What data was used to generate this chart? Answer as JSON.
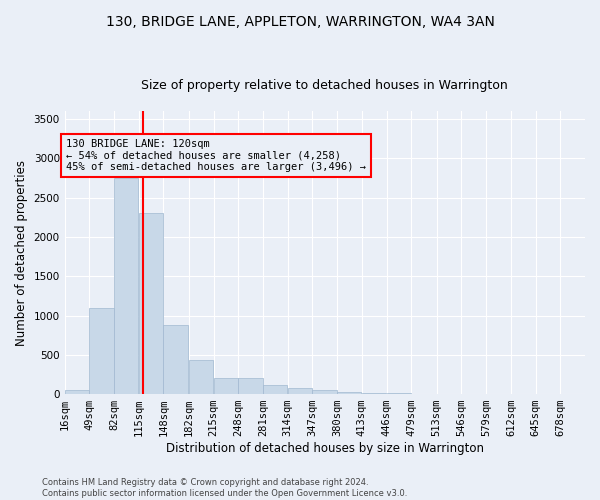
{
  "title": "130, BRIDGE LANE, APPLETON, WARRINGTON, WA4 3AN",
  "subtitle": "Size of property relative to detached houses in Warrington",
  "xlabel": "Distribution of detached houses by size in Warrington",
  "ylabel": "Number of detached properties",
  "footer_line1": "Contains HM Land Registry data © Crown copyright and database right 2024.",
  "footer_line2": "Contains public sector information licensed under the Open Government Licence v3.0.",
  "annotation_title": "130 BRIDGE LANE: 120sqm",
  "annotation_line1": "← 54% of detached houses are smaller (4,258)",
  "annotation_line2": "45% of semi-detached houses are larger (3,496) →",
  "bar_color": "#c8d8e8",
  "bar_edge_color": "#a0b8d0",
  "vline_x": 120,
  "vline_color": "red",
  "categories": [
    "16sqm",
    "49sqm",
    "82sqm",
    "115sqm",
    "148sqm",
    "182sqm",
    "215sqm",
    "248sqm",
    "281sqm",
    "314sqm",
    "347sqm",
    "380sqm",
    "413sqm",
    "446sqm",
    "479sqm",
    "513sqm",
    "546sqm",
    "579sqm",
    "612sqm",
    "645sqm",
    "678sqm"
  ],
  "bin_edges": [
    16,
    49,
    82,
    115,
    148,
    182,
    215,
    248,
    281,
    314,
    347,
    380,
    413,
    446,
    479,
    513,
    546,
    579,
    612,
    645,
    678
  ],
  "bin_width": 33,
  "values": [
    50,
    1100,
    2750,
    2300,
    880,
    430,
    200,
    200,
    110,
    75,
    50,
    30,
    15,
    8,
    5,
    4,
    3,
    2,
    1,
    1,
    0
  ],
  "ylim": [
    0,
    3600
  ],
  "yticks": [
    0,
    500,
    1000,
    1500,
    2000,
    2500,
    3000,
    3500
  ],
  "background_color": "#eaeff7",
  "grid_color": "#ffffff",
  "title_fontsize": 10,
  "subtitle_fontsize": 9,
  "tick_fontsize": 7.5,
  "ylabel_fontsize": 8.5,
  "xlabel_fontsize": 8.5,
  "footer_fontsize": 6,
  "annot_fontsize": 7.5
}
